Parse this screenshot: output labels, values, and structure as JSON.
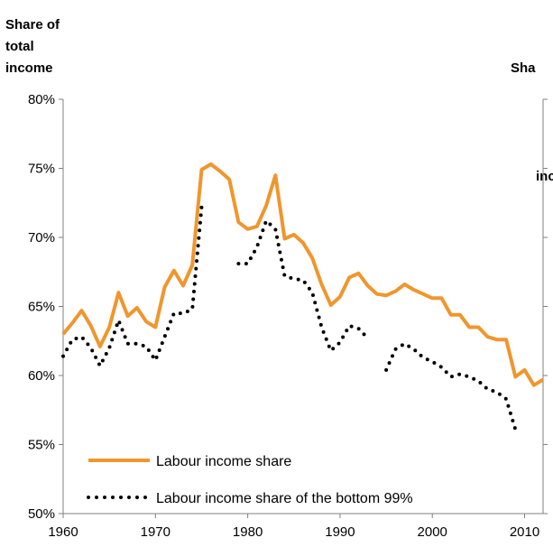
{
  "chart_data": {
    "type": "line",
    "title": "",
    "ylabel_left": [
      "Share of",
      "total",
      "income"
    ],
    "ylabel_right": [
      "Sha",
      "",
      "inc"
    ],
    "xlim": [
      1960,
      2012
    ],
    "ylim": [
      0.5,
      0.8
    ],
    "x_ticks": [
      1960,
      1970,
      1980,
      1990,
      2000,
      2010
    ],
    "y_ticks": [
      0.5,
      0.55,
      0.6,
      0.65,
      0.7,
      0.75,
      0.8
    ],
    "y_tick_labels": [
      "50%",
      "55%",
      "60%",
      "65%",
      "70%",
      "75%",
      "80%"
    ],
    "x_tick_labels": [
      "1960",
      "1970",
      "1980",
      "1990",
      "2000",
      "2010"
    ],
    "legend_position": "bottom-left",
    "series": [
      {
        "name": "Labour income share",
        "color": "#F0962E",
        "style": "solid",
        "x": [
          1960,
          1961,
          1962,
          1963,
          1964,
          1965,
          1966,
          1967,
          1968,
          1969,
          1970,
          1971,
          1972,
          1973,
          1974,
          1975,
          1976,
          1977,
          1978,
          1979,
          1980,
          1981,
          1982,
          1983,
          1984,
          1985,
          1986,
          1987,
          1988,
          1989,
          1990,
          1991,
          1992,
          1993,
          1994,
          1995,
          1996,
          1997,
          1998,
          1999,
          2000,
          2001,
          2002,
          2003,
          2004,
          2005,
          2006,
          2007,
          2008,
          2009,
          2010,
          2011,
          2012
        ],
        "y": [
          0.63,
          0.638,
          0.647,
          0.636,
          0.621,
          0.635,
          0.66,
          0.643,
          0.649,
          0.639,
          0.635,
          0.664,
          0.676,
          0.665,
          0.68,
          0.749,
          0.753,
          0.748,
          0.742,
          0.711,
          0.706,
          0.708,
          0.723,
          0.745,
          0.699,
          0.702,
          0.696,
          0.685,
          0.666,
          0.651,
          0.657,
          0.671,
          0.674,
          0.665,
          0.659,
          0.658,
          0.661,
          0.666,
          0.662,
          0.659,
          0.656,
          0.656,
          0.644,
          0.644,
          0.635,
          0.635,
          0.628,
          0.626,
          0.626,
          0.599,
          0.604,
          0.593,
          0.597
        ]
      },
      {
        "name": "Labour income share of the bottom 99%",
        "color": "#000000",
        "style": "dotted",
        "x": [
          1960,
          1961,
          1962,
          1963,
          1964,
          1965,
          1966,
          1967,
          1968,
          1969,
          1970,
          1971,
          1972,
          1973,
          1974,
          1975,
          null,
          1979,
          1980,
          1981,
          1982,
          1983,
          1984,
          1985,
          1986,
          1987,
          1988,
          1989,
          1990,
          1991,
          1992,
          1993,
          null,
          1995,
          1996,
          1997,
          1998,
          1999,
          2000,
          2001,
          2002,
          2003,
          2004,
          2005,
          2006,
          2007,
          2008,
          2009
        ],
        "y": [
          0.614,
          0.626,
          0.628,
          0.62,
          0.607,
          0.62,
          0.64,
          0.623,
          0.623,
          0.621,
          0.611,
          0.628,
          0.645,
          0.645,
          0.648,
          0.722,
          null,
          0.681,
          0.681,
          0.693,
          0.712,
          0.706,
          0.672,
          0.67,
          0.669,
          0.66,
          0.635,
          0.618,
          0.624,
          0.636,
          0.634,
          0.627,
          null,
          0.604,
          0.619,
          0.623,
          0.619,
          0.613,
          0.61,
          0.606,
          0.599,
          0.601,
          0.599,
          0.596,
          0.59,
          0.588,
          0.583,
          0.561
        ]
      }
    ]
  }
}
